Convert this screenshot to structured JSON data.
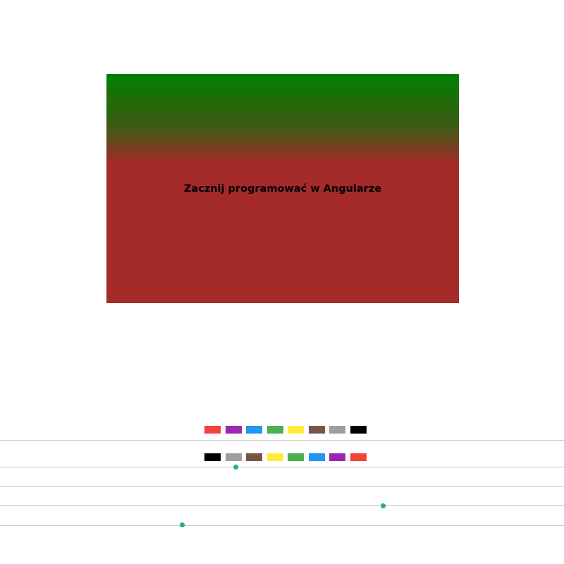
{
  "banner": {
    "title": "Zacznij programować w Angularze",
    "gradient": {
      "from": "#008000",
      "to": "#a52a2a"
    }
  },
  "palettes": [
    {
      "name": "top",
      "colors": [
        "#f44336",
        "#9c27b0",
        "#2196f3",
        "#4caf50",
        "#ffeb3b",
        "#795548",
        "#9e9e9e",
        "#000000"
      ]
    },
    {
      "name": "bottom",
      "colors": [
        "#000000",
        "#9e9e9e",
        "#795548",
        "#ffeb3b",
        "#4caf50",
        "#2196f3",
        "#9c27b0",
        "#f44336"
      ]
    }
  ],
  "sliders": [
    {
      "value": 0.418,
      "thumb_color": "#26a69a"
    },
    {
      "value": 0.679,
      "thumb_color": "#26a69a"
    },
    {
      "value": 0.323,
      "thumb_color": "#26a69a"
    }
  ]
}
